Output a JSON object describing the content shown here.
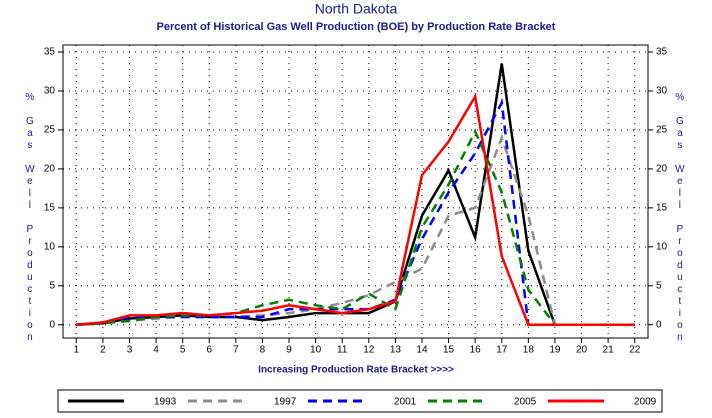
{
  "chart_data": {
    "type": "line",
    "title": "North Dakota",
    "subtitle": "Percent of Historical Gas Well Production (BOE) by Production Rate Bracket",
    "x_label": "Increasing Production Rate Bracket >>>>",
    "y_label": "% Gas Well Production",
    "x": [
      1,
      2,
      3,
      4,
      5,
      6,
      7,
      8,
      9,
      10,
      11,
      12,
      13,
      14,
      15,
      16,
      17,
      18,
      19,
      20,
      21,
      22
    ],
    "xlim": [
      0.5,
      22.5
    ],
    "xticks": [
      1,
      2,
      3,
      4,
      5,
      6,
      7,
      8,
      9,
      10,
      11,
      12,
      13,
      14,
      15,
      16,
      17,
      18,
      19,
      20,
      21,
      22
    ],
    "ylim": [
      -1.7,
      35.9
    ],
    "yticks": [
      0,
      5,
      10,
      15,
      20,
      25,
      30,
      35
    ],
    "grid": true,
    "legend": "bottom",
    "series": [
      {
        "name": "1993",
        "color": "#000000",
        "dashed": false,
        "values": [
          0,
          0.2,
          0.8,
          1,
          1.2,
          1,
          1,
          0.6,
          1,
          1.5,
          1.5,
          1.5,
          3,
          14,
          19.8,
          11.2,
          33.5,
          9.5,
          0,
          0,
          0,
          0
        ]
      },
      {
        "name": "1997",
        "color": "#8c8c8c",
        "dashed": true,
        "values": [
          0,
          0.2,
          0.5,
          0.8,
          1,
          1,
          1,
          1.2,
          1.5,
          2,
          2.8,
          3.8,
          5.5,
          7.2,
          14,
          15,
          24,
          14,
          0,
          0,
          0,
          0
        ]
      },
      {
        "name": "2001",
        "color": "#0000ff",
        "dashed": true,
        "values": [
          0,
          0.2,
          1,
          1,
          1,
          1,
          1,
          1,
          2,
          2,
          2,
          2,
          3.2,
          11,
          17,
          22,
          28.5,
          0,
          0,
          0,
          0,
          0
        ]
      },
      {
        "name": "2005",
        "color": "#008000",
        "dashed": true,
        "values": [
          0,
          0.2,
          0.5,
          1,
          1.2,
          1.2,
          1.5,
          2.5,
          3.2,
          2.5,
          2,
          4,
          2,
          12.5,
          18,
          24.8,
          17,
          4.5,
          0,
          0,
          0,
          0
        ]
      },
      {
        "name": "2009",
        "color": "#ff0000",
        "dashed": false,
        "values": [
          0,
          0.3,
          1.2,
          1.2,
          1.5,
          1.2,
          1.5,
          1.8,
          2.5,
          2,
          1.5,
          2,
          3,
          19.2,
          23.5,
          29.3,
          8.8,
          0,
          0,
          0,
          0,
          0
        ]
      }
    ]
  }
}
